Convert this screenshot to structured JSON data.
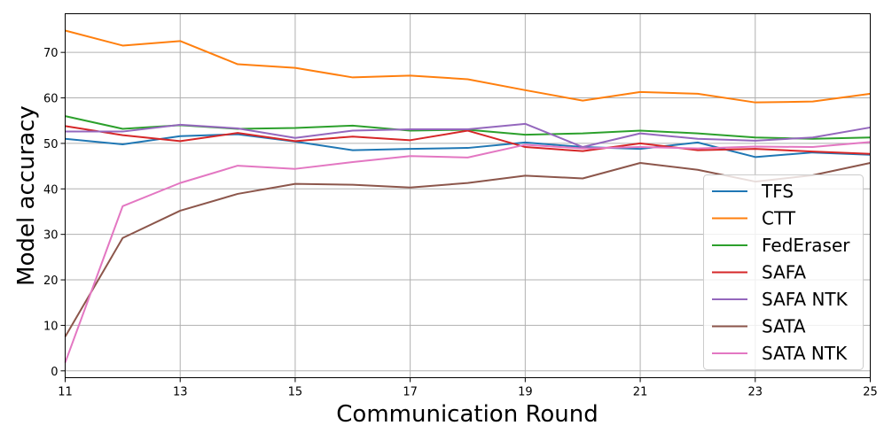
{
  "chart_data": {
    "type": "line",
    "title": "",
    "xlabel": "Communication Round",
    "ylabel": "Model accuracy",
    "x": [
      11,
      12,
      13,
      14,
      15,
      16,
      17,
      18,
      19,
      20,
      21,
      22,
      23,
      24,
      25
    ],
    "xlim": [
      11,
      25
    ],
    "ylim": [
      -1.5,
      78.5
    ],
    "xticks": [
      11,
      13,
      15,
      17,
      19,
      21,
      23,
      25
    ],
    "yticks": [
      0,
      10,
      20,
      30,
      40,
      50,
      60,
      70
    ],
    "grid": true,
    "legend_position": "bottom-right",
    "series": [
      {
        "name": "TFS",
        "color": "#1f77b4",
        "values": [
          51.0,
          49.8,
          51.6,
          52.0,
          50.4,
          48.5,
          48.8,
          49.0,
          50.2,
          49.2,
          48.8,
          50.2,
          47.0,
          48.0,
          47.5
        ]
      },
      {
        "name": "CTT",
        "color": "#ff7f0e",
        "values": [
          74.8,
          71.5,
          72.5,
          67.4,
          66.6,
          64.5,
          64.9,
          64.1,
          61.7,
          59.4,
          61.3,
          60.9,
          59.0,
          59.2,
          60.9
        ]
      },
      {
        "name": "FedEraser",
        "color": "#2ca02c",
        "values": [
          56.0,
          53.2,
          54.0,
          53.2,
          53.4,
          53.9,
          52.8,
          53.0,
          51.9,
          52.2,
          52.8,
          52.2,
          51.3,
          51.0,
          51.3
        ]
      },
      {
        "name": "SAFA",
        "color": "#d62728",
        "values": [
          53.8,
          51.8,
          50.5,
          52.3,
          50.5,
          51.5,
          50.7,
          52.8,
          49.2,
          48.3,
          50.0,
          48.5,
          48.8,
          48.2,
          47.7
        ]
      },
      {
        "name": "SAFA NTK",
        "color": "#9467bd",
        "values": [
          52.6,
          52.6,
          54.1,
          53.3,
          51.2,
          52.8,
          53.1,
          53.1,
          54.3,
          49.2,
          52.2,
          51.0,
          50.6,
          51.3,
          53.5
        ]
      },
      {
        "name": "SATA",
        "color": "#8c564b",
        "values": [
          7.5,
          29.2,
          35.2,
          38.9,
          41.1,
          40.9,
          40.3,
          41.3,
          42.9,
          42.3,
          45.7,
          44.2,
          41.6,
          43.0,
          45.7
        ]
      },
      {
        "name": "SATA NTK",
        "color": "#e377c2",
        "values": [
          1.8,
          36.2,
          41.3,
          45.1,
          44.4,
          45.9,
          47.2,
          46.9,
          49.7,
          48.9,
          49.2,
          48.9,
          49.3,
          49.2,
          50.3
        ]
      }
    ]
  }
}
